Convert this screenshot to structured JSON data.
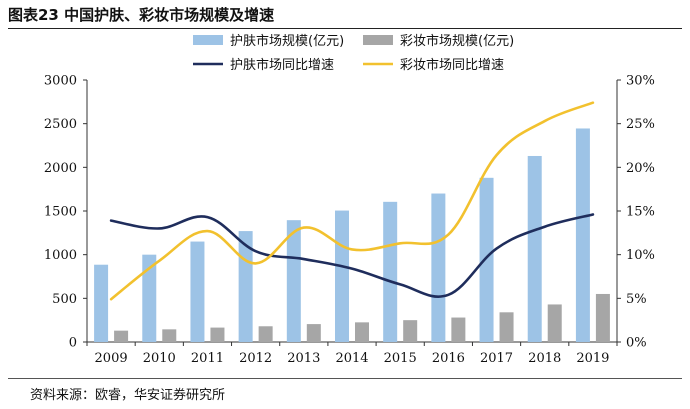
{
  "figure": {
    "title": "图表23  中国护肤、彩妆市场规模及增速",
    "source": "资料来源：欧睿，华安证券研究所"
  },
  "colors": {
    "skincare_bar": "#9dc3e6",
    "makeup_bar": "#a6a6a6",
    "skincare_line": "#1f2d5c",
    "makeup_line": "#f2c12e"
  },
  "chart_data": {
    "type": "bar",
    "title": "",
    "categories": [
      "2009",
      "2010",
      "2011",
      "2012",
      "2013",
      "2014",
      "2015",
      "2016",
      "2017",
      "2018",
      "2019"
    ],
    "series": [
      {
        "name": "护肤市场规模(亿元)",
        "kind": "bar",
        "axis": "left",
        "values": [
          885,
          1000,
          1150,
          1270,
          1395,
          1505,
          1605,
          1700,
          1880,
          2130,
          2445
        ]
      },
      {
        "name": "彩妆市场规模(亿元)",
        "kind": "bar",
        "axis": "left",
        "values": [
          130,
          145,
          165,
          180,
          205,
          225,
          250,
          280,
          340,
          430,
          550
        ]
      },
      {
        "name": "护肤市场同比增速",
        "kind": "line",
        "axis": "right",
        "values": [
          13.9,
          13.0,
          14.3,
          10.4,
          9.5,
          8.4,
          6.6,
          5.4,
          10.7,
          13.2,
          14.6
        ]
      },
      {
        "name": "彩妆市场同比增速",
        "kind": "line",
        "axis": "right",
        "values": [
          4.9,
          9.3,
          12.7,
          9.0,
          13.1,
          10.6,
          11.3,
          12.3,
          21.4,
          25.3,
          27.4
        ]
      }
    ],
    "ylim_left": [
      0,
      3000
    ],
    "yticks_left": [
      "0",
      "500",
      "1000",
      "1500",
      "2000",
      "2500",
      "3000"
    ],
    "ylim_right": [
      0,
      30
    ],
    "yticks_right": [
      "0%",
      "5%",
      "10%",
      "15%",
      "20%",
      "25%",
      "30%"
    ],
    "legend_position": "top"
  }
}
